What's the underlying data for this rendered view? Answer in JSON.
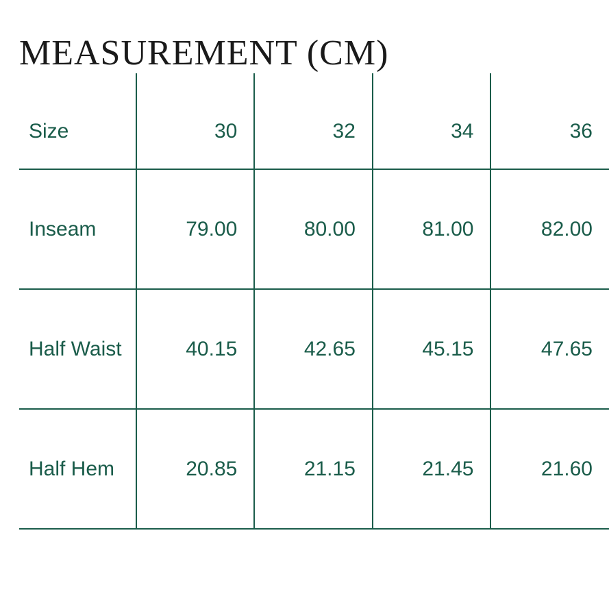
{
  "title": "MEASUREMENT (CM)",
  "table": {
    "type": "table",
    "border_color": "#1a5c4a",
    "text_color": "#1a5c4a",
    "title_color": "#1a1a1a",
    "title_fontsize": 52,
    "cell_fontsize": 30,
    "header_fontsize": 30,
    "background_color": "#ffffff",
    "columns": [
      "Size",
      "30",
      "32",
      "34",
      "36"
    ],
    "rows": [
      {
        "label": "Inseam",
        "values": [
          "79.00",
          "80.00",
          "81.00",
          "82.00"
        ]
      },
      {
        "label": "Half Waist",
        "values": [
          "40.15",
          "42.65",
          "45.15",
          "47.65"
        ]
      },
      {
        "label": "Half Hem",
        "values": [
          "20.85",
          "21.15",
          "21.45",
          "21.60"
        ]
      }
    ],
    "column_widths": {
      "label": 175,
      "data": 177
    },
    "row_heights": {
      "header": 110,
      "data": 175
    },
    "label_alignment": "left",
    "data_alignment": "right"
  }
}
